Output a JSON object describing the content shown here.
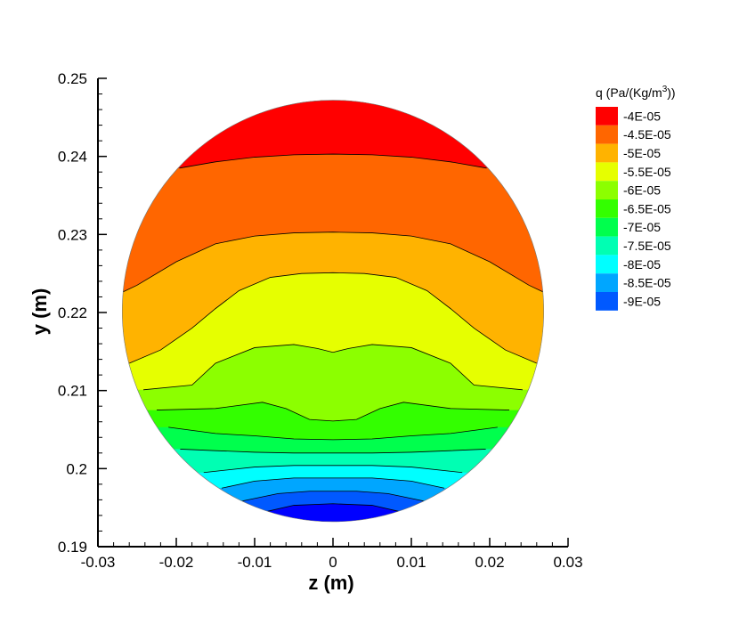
{
  "chart_data": {
    "type": "heatmap",
    "subtype": "contour",
    "title": "",
    "xlabel": "z  (m)",
    "ylabel": "y  (m)",
    "xlim": [
      -0.03,
      0.03
    ],
    "ylim": [
      0.19,
      0.25
    ],
    "xticks": [
      "-0.03",
      "-0.02",
      "-0.01",
      "0",
      "0.01",
      "0.02",
      "0.03"
    ],
    "yticks": [
      "0.19",
      "0.2",
      "0.21",
      "0.22",
      "0.23",
      "0.24",
      "0.25"
    ],
    "domain": {
      "shape": "circle",
      "center": [
        0,
        0.2202
      ],
      "radius": 0.0269
    },
    "legend": {
      "position": "right",
      "title_prefix": "q  (Pa/(Kg/m",
      "title_sup": "3",
      "title_suffix": "))",
      "levels": [
        {
          "label": "-4E-05",
          "value": -4e-05,
          "color": "#ff0000"
        },
        {
          "label": "-4.5E-05",
          "value": -4.5e-05,
          "color": "#ff6600"
        },
        {
          "label": "-5E-05",
          "value": -5e-05,
          "color": "#ffb300"
        },
        {
          "label": "-5.5E-05",
          "value": -5.5e-05,
          "color": "#e6ff00"
        },
        {
          "label": "-6E-05",
          "value": -6e-05,
          "color": "#8cff00"
        },
        {
          "label": "-6.5E-05",
          "value": -6.5e-05,
          "color": "#33ff00"
        },
        {
          "label": "-7E-05",
          "value": -7e-05,
          "color": "#00ff4d"
        },
        {
          "label": "-7.5E-05",
          "value": -7.5e-05,
          "color": "#00ffb3"
        },
        {
          "label": "-8E-05",
          "value": -8e-05,
          "color": "#00ffff"
        },
        {
          "label": "-8.5E-05",
          "value": -8.5e-05,
          "color": "#00a6ff"
        },
        {
          "label": "-9E-05",
          "value": -9e-05,
          "color": "#0059ff"
        }
      ],
      "lowest_band_color": "#0000ff"
    },
    "contour_lines": [
      {
        "level": -4e-05,
        "points": [
          [
            -0.0196,
            0.2385
          ],
          [
            -0.015,
            0.2393
          ],
          [
            -0.01,
            0.2399
          ],
          [
            -0.005,
            0.2402
          ],
          [
            0,
            0.2403
          ],
          [
            0.005,
            0.2402
          ],
          [
            0.01,
            0.2399
          ],
          [
            0.015,
            0.2393
          ],
          [
            0.0196,
            0.2385
          ]
        ]
      },
      {
        "level": -4.5e-05,
        "points": [
          [
            -0.0269,
            0.2226
          ],
          [
            -0.025,
            0.2235
          ],
          [
            -0.02,
            0.2265
          ],
          [
            -0.015,
            0.2288
          ],
          [
            -0.01,
            0.2298
          ],
          [
            -0.005,
            0.2302
          ],
          [
            0,
            0.2303
          ],
          [
            0.005,
            0.2302
          ],
          [
            0.01,
            0.2298
          ],
          [
            0.015,
            0.2288
          ],
          [
            0.02,
            0.2265
          ],
          [
            0.025,
            0.2235
          ],
          [
            0.0269,
            0.2226
          ]
        ]
      },
      {
        "level": -5e-05,
        "points": [
          [
            -0.026,
            0.2135
          ],
          [
            -0.022,
            0.2152
          ],
          [
            -0.018,
            0.218
          ],
          [
            -0.015,
            0.2205
          ],
          [
            -0.012,
            0.2228
          ],
          [
            -0.008,
            0.2245
          ],
          [
            -0.004,
            0.225
          ],
          [
            0,
            0.2251
          ],
          [
            0.004,
            0.225
          ],
          [
            0.008,
            0.2245
          ],
          [
            0.012,
            0.2228
          ],
          [
            0.015,
            0.2205
          ],
          [
            0.018,
            0.218
          ],
          [
            0.022,
            0.2152
          ],
          [
            0.026,
            0.2135
          ]
        ]
      },
      {
        "level": -5.5e-05,
        "points": [
          [
            -0.0242,
            0.2101
          ],
          [
            -0.018,
            0.2107
          ],
          [
            -0.015,
            0.2135
          ],
          [
            -0.01,
            0.2155
          ],
          [
            -0.005,
            0.2159
          ],
          [
            -0.002,
            0.2154
          ],
          [
            0,
            0.2149
          ],
          [
            0.002,
            0.2154
          ],
          [
            0.005,
            0.2159
          ],
          [
            0.01,
            0.2155
          ],
          [
            0.015,
            0.2135
          ],
          [
            0.018,
            0.2107
          ],
          [
            0.0242,
            0.2101
          ]
        ]
      },
      {
        "level": -6e-05,
        "points": [
          [
            -0.0225,
            0.2075
          ],
          [
            -0.015,
            0.2077
          ],
          [
            -0.009,
            0.2085
          ],
          [
            -0.006,
            0.2077
          ],
          [
            -0.003,
            0.2063
          ],
          [
            0,
            0.2061
          ],
          [
            0.003,
            0.2063
          ],
          [
            0.006,
            0.2077
          ],
          [
            0.009,
            0.2085
          ],
          [
            0.015,
            0.2077
          ],
          [
            0.0225,
            0.2075
          ]
        ]
      },
      {
        "level": -6.5e-05,
        "points": [
          [
            -0.021,
            0.2053
          ],
          [
            -0.015,
            0.2045
          ],
          [
            -0.01,
            0.2042
          ],
          [
            -0.005,
            0.2038
          ],
          [
            0,
            0.2037
          ],
          [
            0.005,
            0.2038
          ],
          [
            0.01,
            0.2042
          ],
          [
            0.015,
            0.2045
          ],
          [
            0.021,
            0.2053
          ]
        ]
      },
      {
        "level": -7e-05,
        "points": [
          [
            -0.0195,
            0.2025
          ],
          [
            -0.015,
            0.2023
          ],
          [
            -0.01,
            0.2021
          ],
          [
            -0.005,
            0.202
          ],
          [
            0,
            0.202
          ],
          [
            0.005,
            0.202
          ],
          [
            0.01,
            0.2021
          ],
          [
            0.015,
            0.2023
          ],
          [
            0.0195,
            0.2025
          ]
        ]
      },
      {
        "level": -7.5e-05,
        "points": [
          [
            -0.0165,
            0.1995
          ],
          [
            -0.01,
            0.2002
          ],
          [
            -0.005,
            0.2004
          ],
          [
            0,
            0.2004
          ],
          [
            0.005,
            0.2004
          ],
          [
            0.01,
            0.2002
          ],
          [
            0.0165,
            0.1995
          ]
        ]
      },
      {
        "level": -8e-05,
        "points": [
          [
            -0.0142,
            0.1975
          ],
          [
            -0.01,
            0.1984
          ],
          [
            -0.005,
            0.1988
          ],
          [
            0,
            0.1988
          ],
          [
            0.005,
            0.1988
          ],
          [
            0.01,
            0.1984
          ],
          [
            0.0142,
            0.1975
          ]
        ]
      },
      {
        "level": -8.5e-05,
        "points": [
          [
            -0.0118,
            0.1958
          ],
          [
            -0.007,
            0.1968
          ],
          [
            -0.003,
            0.1971
          ],
          [
            0,
            0.1971
          ],
          [
            0.003,
            0.1971
          ],
          [
            0.007,
            0.1968
          ],
          [
            0.0118,
            0.1958
          ]
        ]
      },
      {
        "level": -9e-05,
        "points": [
          [
            -0.0085,
            0.1945
          ],
          [
            -0.005,
            0.1953
          ],
          [
            0,
            0.1955
          ],
          [
            0.005,
            0.1953
          ],
          [
            0.0085,
            0.1945
          ]
        ]
      }
    ]
  }
}
